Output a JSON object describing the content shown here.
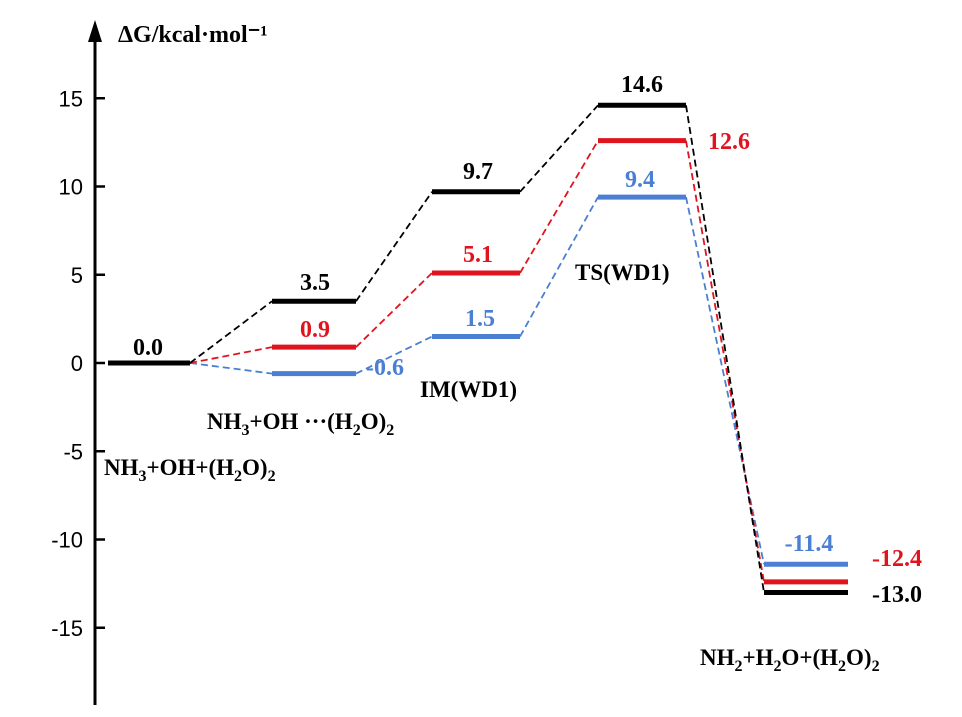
{
  "chart_data": {
    "type": "line",
    "ylabel": "ΔG/kcal·mol⁻¹",
    "ylim": [
      -18.5,
      19.5
    ],
    "yticks": [
      15,
      10,
      5,
      0,
      -5,
      -10,
      -15
    ],
    "ytick_labels": [
      "15",
      "10",
      "5",
      "0",
      "-5",
      "-10",
      "-15"
    ],
    "categories": [
      "NH3+OH+(H2O)2",
      "NH3+OH···(H2O)2",
      "IM(WD1)",
      "TS(WD1)",
      "NH2+H2O+(H2O)2"
    ],
    "species_labels": [
      {
        "parts": [
          "NH",
          "3",
          "+OH+(H",
          "2",
          "O)",
          "2"
        ]
      },
      {
        "parts": [
          "NH",
          "3",
          "+OH ···(H",
          "2",
          "O)",
          "2"
        ]
      },
      {
        "parts": [
          "IM(WD1)"
        ]
      },
      {
        "parts": [
          "TS(WD1)"
        ]
      },
      {
        "parts": [
          "NH",
          "2",
          "+H",
          "2",
          "O+(H",
          "2",
          "O)",
          "2"
        ]
      }
    ],
    "series": [
      {
        "color": "#000000",
        "values": [
          0.0,
          3.5,
          9.7,
          14.6,
          -13.0
        ],
        "labels": [
          "0.0",
          "3.5",
          "9.7",
          "14.6",
          "-13.0"
        ]
      },
      {
        "color": "#e0141e",
        "values": [
          0.0,
          0.9,
          5.1,
          12.6,
          -12.4
        ],
        "labels": [
          null,
          "0.9",
          "5.1",
          "12.6",
          "-12.4"
        ]
      },
      {
        "color": "#4a7fd4",
        "values": [
          0.0,
          -0.6,
          1.5,
          9.4,
          -11.4
        ],
        "labels": [
          null,
          "-0.6",
          "1.5",
          "9.4",
          "-11.4"
        ]
      }
    ],
    "grid": false
  }
}
